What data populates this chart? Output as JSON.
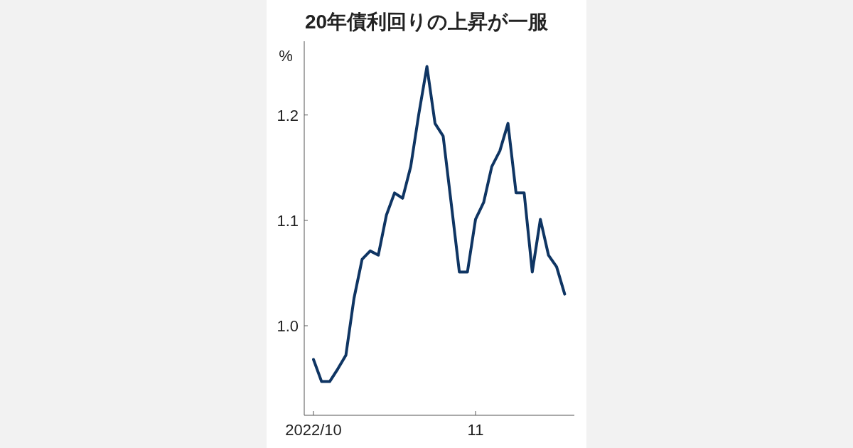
{
  "chart_data": {
    "type": "line",
    "title": "20年債利回りの上昇が一服",
    "ylabel": "%",
    "categories": [
      "2022/10",
      null,
      null,
      null,
      null,
      null,
      null,
      null,
      null,
      null,
      null,
      null,
      null,
      null,
      null,
      null,
      null,
      null,
      null,
      null,
      "11",
      null,
      null,
      null,
      null,
      null,
      null,
      null,
      null,
      null,
      null,
      null
    ],
    "series": [
      {
        "color": "#0f3563",
        "values": [
          0.968,
          0.947,
          0.947,
          0.959,
          0.972,
          1.026,
          1.063,
          1.071,
          1.067,
          1.105,
          1.126,
          1.121,
          1.151,
          1.201,
          1.246,
          1.192,
          1.18,
          1.116,
          1.051,
          1.051,
          1.101,
          1.117,
          1.151,
          1.166,
          1.192,
          1.126,
          1.126,
          1.051,
          1.101,
          1.067,
          1.056,
          1.03
        ]
      }
    ],
    "ylim": [
      0.915,
      1.27
    ],
    "yticks": [
      {
        "value": 1,
        "label": "1.0"
      },
      {
        "value": 1.1,
        "label": "1.1"
      },
      {
        "value": 1.2,
        "label": "1.2"
      }
    ],
    "grid": false,
    "marker": "none",
    "line_style": "solid"
  }
}
